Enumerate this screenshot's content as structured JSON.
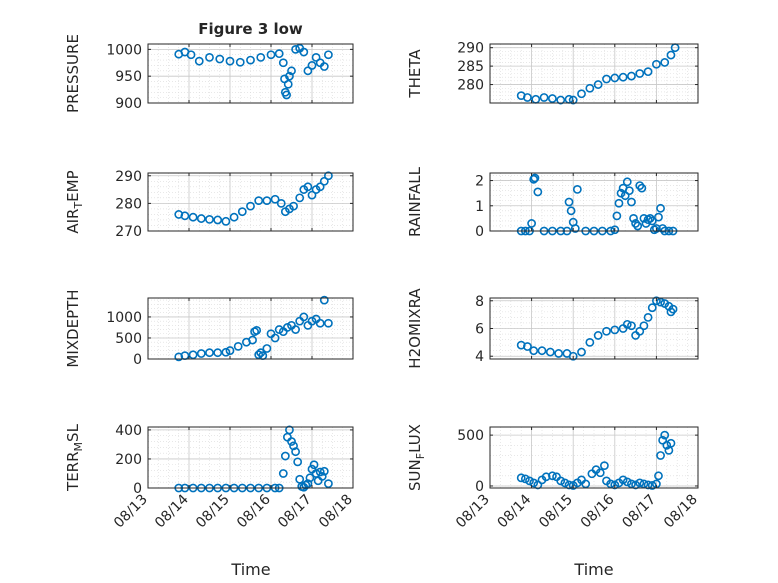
{
  "chart_data": [
    {
      "type": "scatter",
      "ylabel": "PRESSURE",
      "title": "Figure 3 low",
      "ylim": [
        900,
        1010
      ],
      "yticks": [
        900,
        950,
        1000
      ],
      "grid": true,
      "x_ticks": [
        "08/13",
        "08/14",
        "08/15",
        "08/16",
        "08/17",
        "08/18"
      ],
      "x": [
        13.75,
        13.9,
        14.05,
        14.25,
        14.5,
        14.75,
        15,
        15.25,
        15.5,
        15.75,
        16,
        16.2,
        16.3,
        16.33,
        16.35,
        16.38,
        16.42,
        16.45,
        16.5,
        16.6,
        16.7,
        16.8,
        16.9,
        17.0,
        17.1,
        17.2,
        17.3,
        17.4
      ],
      "y": [
        991,
        995,
        990,
        978,
        985,
        982,
        978,
        976,
        980,
        985,
        990,
        992,
        975,
        945,
        920,
        915,
        935,
        950,
        960,
        1000,
        1002,
        995,
        960,
        970,
        985,
        975,
        968,
        990
      ]
    },
    {
      "type": "scatter",
      "ylabel": "THETA",
      "ylim": [
        275,
        291
      ],
      "yticks": [
        280,
        285,
        290
      ],
      "grid": true,
      "x_ticks": [
        "08/13",
        "08/14",
        "08/15",
        "08/16",
        "08/17",
        "08/18"
      ],
      "x": [
        13.75,
        13.9,
        14.1,
        14.3,
        14.5,
        14.7,
        14.9,
        15.0,
        15.2,
        15.4,
        15.6,
        15.8,
        16.0,
        16.2,
        16.4,
        16.6,
        16.8,
        17.0,
        17.2,
        17.35,
        17.45
      ],
      "y": [
        277,
        276.5,
        276,
        276.5,
        276.2,
        275.8,
        276,
        275.8,
        277.5,
        279,
        280,
        281.5,
        281.8,
        282,
        282.3,
        283,
        283.5,
        285.5,
        286,
        288,
        290
      ]
    },
    {
      "type": "scatter",
      "ylabel": "AIR",
      "ylabel_sub": "T",
      "ylabel_rest": "EMP",
      "ylim": [
        270,
        291
      ],
      "yticks": [
        270,
        280,
        290
      ],
      "grid": true,
      "x_ticks": [
        "08/13",
        "08/14",
        "08/15",
        "08/16",
        "08/17",
        "08/18"
      ],
      "x": [
        13.75,
        13.9,
        14.1,
        14.3,
        14.5,
        14.7,
        14.9,
        15.1,
        15.3,
        15.5,
        15.7,
        15.9,
        16.1,
        16.25,
        16.35,
        16.45,
        16.55,
        16.7,
        16.8,
        16.9,
        17.0,
        17.1,
        17.2,
        17.3,
        17.4
      ],
      "y": [
        276,
        275.5,
        275,
        274.5,
        274.2,
        274,
        273.5,
        275,
        277,
        279,
        281,
        281,
        281.5,
        280,
        277,
        278,
        279,
        282,
        285,
        286,
        283,
        285,
        286,
        288,
        290
      ]
    },
    {
      "type": "scatter",
      "ylabel": "RAINFALL",
      "ylim": [
        0,
        2.3
      ],
      "yticks": [
        0,
        1,
        2
      ],
      "grid": true,
      "x_ticks": [
        "08/13",
        "08/14",
        "08/15",
        "08/16",
        "08/17",
        "08/18"
      ],
      "x": [
        13.75,
        13.85,
        13.95,
        14.0,
        14.05,
        14.08,
        14.15,
        14.3,
        14.5,
        14.7,
        14.85,
        14.9,
        14.95,
        15.0,
        15.05,
        15.1,
        15.3,
        15.5,
        15.7,
        15.9,
        16.0,
        16.05,
        16.1,
        16.15,
        16.2,
        16.25,
        16.3,
        16.35,
        16.4,
        16.45,
        16.5,
        16.55,
        16.6,
        16.65,
        16.7,
        16.75,
        16.8,
        16.85,
        16.9,
        16.95,
        17.0,
        17.05,
        17.1,
        17.15,
        17.2,
        17.3,
        17.4
      ],
      "y": [
        0,
        0,
        0,
        0.3,
        2.05,
        2.1,
        1.55,
        0,
        0,
        0,
        0,
        1.15,
        0.8,
        0.35,
        0.1,
        1.65,
        0,
        0,
        0,
        0,
        0.05,
        0.6,
        1.1,
        1.5,
        1.7,
        1.4,
        1.95,
        1.6,
        1.15,
        0.5,
        0.3,
        0.2,
        1.8,
        1.7,
        0.5,
        0.3,
        0.45,
        0.5,
        0.4,
        0.05,
        0.1,
        0.55,
        0.9,
        0.1,
        0,
        0,
        0
      ]
    },
    {
      "type": "scatter",
      "ylabel": "MIXDEPTH",
      "ylim": [
        0,
        1450
      ],
      "yticks": [
        0,
        500,
        1000
      ],
      "grid": true,
      "x_ticks": [
        "08/13",
        "08/14",
        "08/15",
        "08/16",
        "08/17",
        "08/18"
      ],
      "x": [
        13.75,
        13.9,
        14.1,
        14.3,
        14.5,
        14.7,
        14.9,
        15.0,
        15.2,
        15.4,
        15.55,
        15.6,
        15.65,
        15.7,
        15.75,
        15.8,
        15.9,
        16.0,
        16.1,
        16.2,
        16.3,
        16.4,
        16.5,
        16.6,
        16.7,
        16.8,
        16.9,
        17.0,
        17.1,
        17.2,
        17.3,
        17.4
      ],
      "y": [
        50,
        80,
        100,
        130,
        150,
        150,
        160,
        200,
        300,
        400,
        450,
        650,
        680,
        100,
        150,
        80,
        250,
        600,
        500,
        700,
        650,
        750,
        800,
        700,
        900,
        1000,
        800,
        900,
        950,
        850,
        1400,
        850
      ]
    },
    {
      "type": "scatter",
      "ylabel": "H2OMIXRA",
      "ylim": [
        3.8,
        8.2
      ],
      "yticks": [
        4,
        6,
        8
      ],
      "grid": true,
      "x_ticks": [
        "08/13",
        "08/14",
        "08/15",
        "08/16",
        "08/17",
        "08/18"
      ],
      "x": [
        13.75,
        13.9,
        14.05,
        14.25,
        14.45,
        14.65,
        14.85,
        15.0,
        15.2,
        15.4,
        15.6,
        15.8,
        16.0,
        16.2,
        16.3,
        16.4,
        16.5,
        16.6,
        16.7,
        16.8,
        16.9,
        17.0,
        17.1,
        17.2,
        17.3,
        17.35,
        17.4
      ],
      "y": [
        4.8,
        4.7,
        4.4,
        4.4,
        4.3,
        4.2,
        4.2,
        4.0,
        4.3,
        5.0,
        5.5,
        5.8,
        5.9,
        6.0,
        6.3,
        6.2,
        5.5,
        5.8,
        6.2,
        6.8,
        7.5,
        8.0,
        7.9,
        7.8,
        7.6,
        7.2,
        7.4
      ]
    },
    {
      "type": "scatter",
      "ylabel": "TERR",
      "ylabel_sub": "M",
      "ylabel_rest": "SL",
      "ylim": [
        0,
        420
      ],
      "yticks": [
        0,
        200,
        400
      ],
      "grid": true,
      "show_xticklabels": true,
      "x_ticks": [
        "08/13",
        "08/14",
        "08/15",
        "08/16",
        "08/17",
        "08/18"
      ],
      "x": [
        13.75,
        13.9,
        14.1,
        14.3,
        14.5,
        14.7,
        14.9,
        15.1,
        15.3,
        15.5,
        15.7,
        15.9,
        16.1,
        16.2,
        16.3,
        16.35,
        16.4,
        16.45,
        16.5,
        16.55,
        16.6,
        16.65,
        16.7,
        16.75,
        16.8,
        16.85,
        16.9,
        16.95,
        17.0,
        17.05,
        17.1,
        17.15,
        17.2,
        17.25,
        17.3,
        17.4
      ],
      "y": [
        0,
        0,
        0,
        0,
        0,
        0,
        0,
        0,
        0,
        0,
        0,
        0,
        0,
        0,
        100,
        220,
        350,
        400,
        320,
        290,
        250,
        180,
        60,
        10,
        5,
        20,
        30,
        70,
        130,
        160,
        100,
        50,
        110,
        80,
        115,
        30
      ]
    },
    {
      "type": "scatter",
      "ylabel": "SUN",
      "ylabel_sub": "F",
      "ylabel_rest": "LUX",
      "ylim": [
        -20,
        580
      ],
      "yticks": [
        0,
        500
      ],
      "grid": true,
      "show_xticklabels": true,
      "x_ticks": [
        "08/13",
        "08/14",
        "08/15",
        "08/16",
        "08/17",
        "08/18"
      ],
      "x": [
        13.75,
        13.85,
        13.95,
        14.05,
        14.15,
        14.25,
        14.35,
        14.5,
        14.6,
        14.7,
        14.8,
        14.9,
        15.0,
        15.1,
        15.2,
        15.3,
        15.45,
        15.55,
        15.65,
        15.75,
        15.8,
        15.9,
        16.0,
        16.1,
        16.2,
        16.3,
        16.4,
        16.5,
        16.6,
        16.7,
        16.8,
        16.9,
        17.0,
        17.05,
        17.1,
        17.15,
        17.2,
        17.25,
        17.3,
        17.35
      ],
      "y": [
        80,
        70,
        50,
        30,
        10,
        60,
        90,
        100,
        90,
        50,
        30,
        10,
        5,
        30,
        60,
        20,
        120,
        160,
        130,
        200,
        50,
        20,
        10,
        30,
        60,
        40,
        20,
        10,
        30,
        20,
        10,
        5,
        20,
        100,
        300,
        450,
        500,
        400,
        350,
        420
      ]
    }
  ],
  "xlabel": "Time"
}
